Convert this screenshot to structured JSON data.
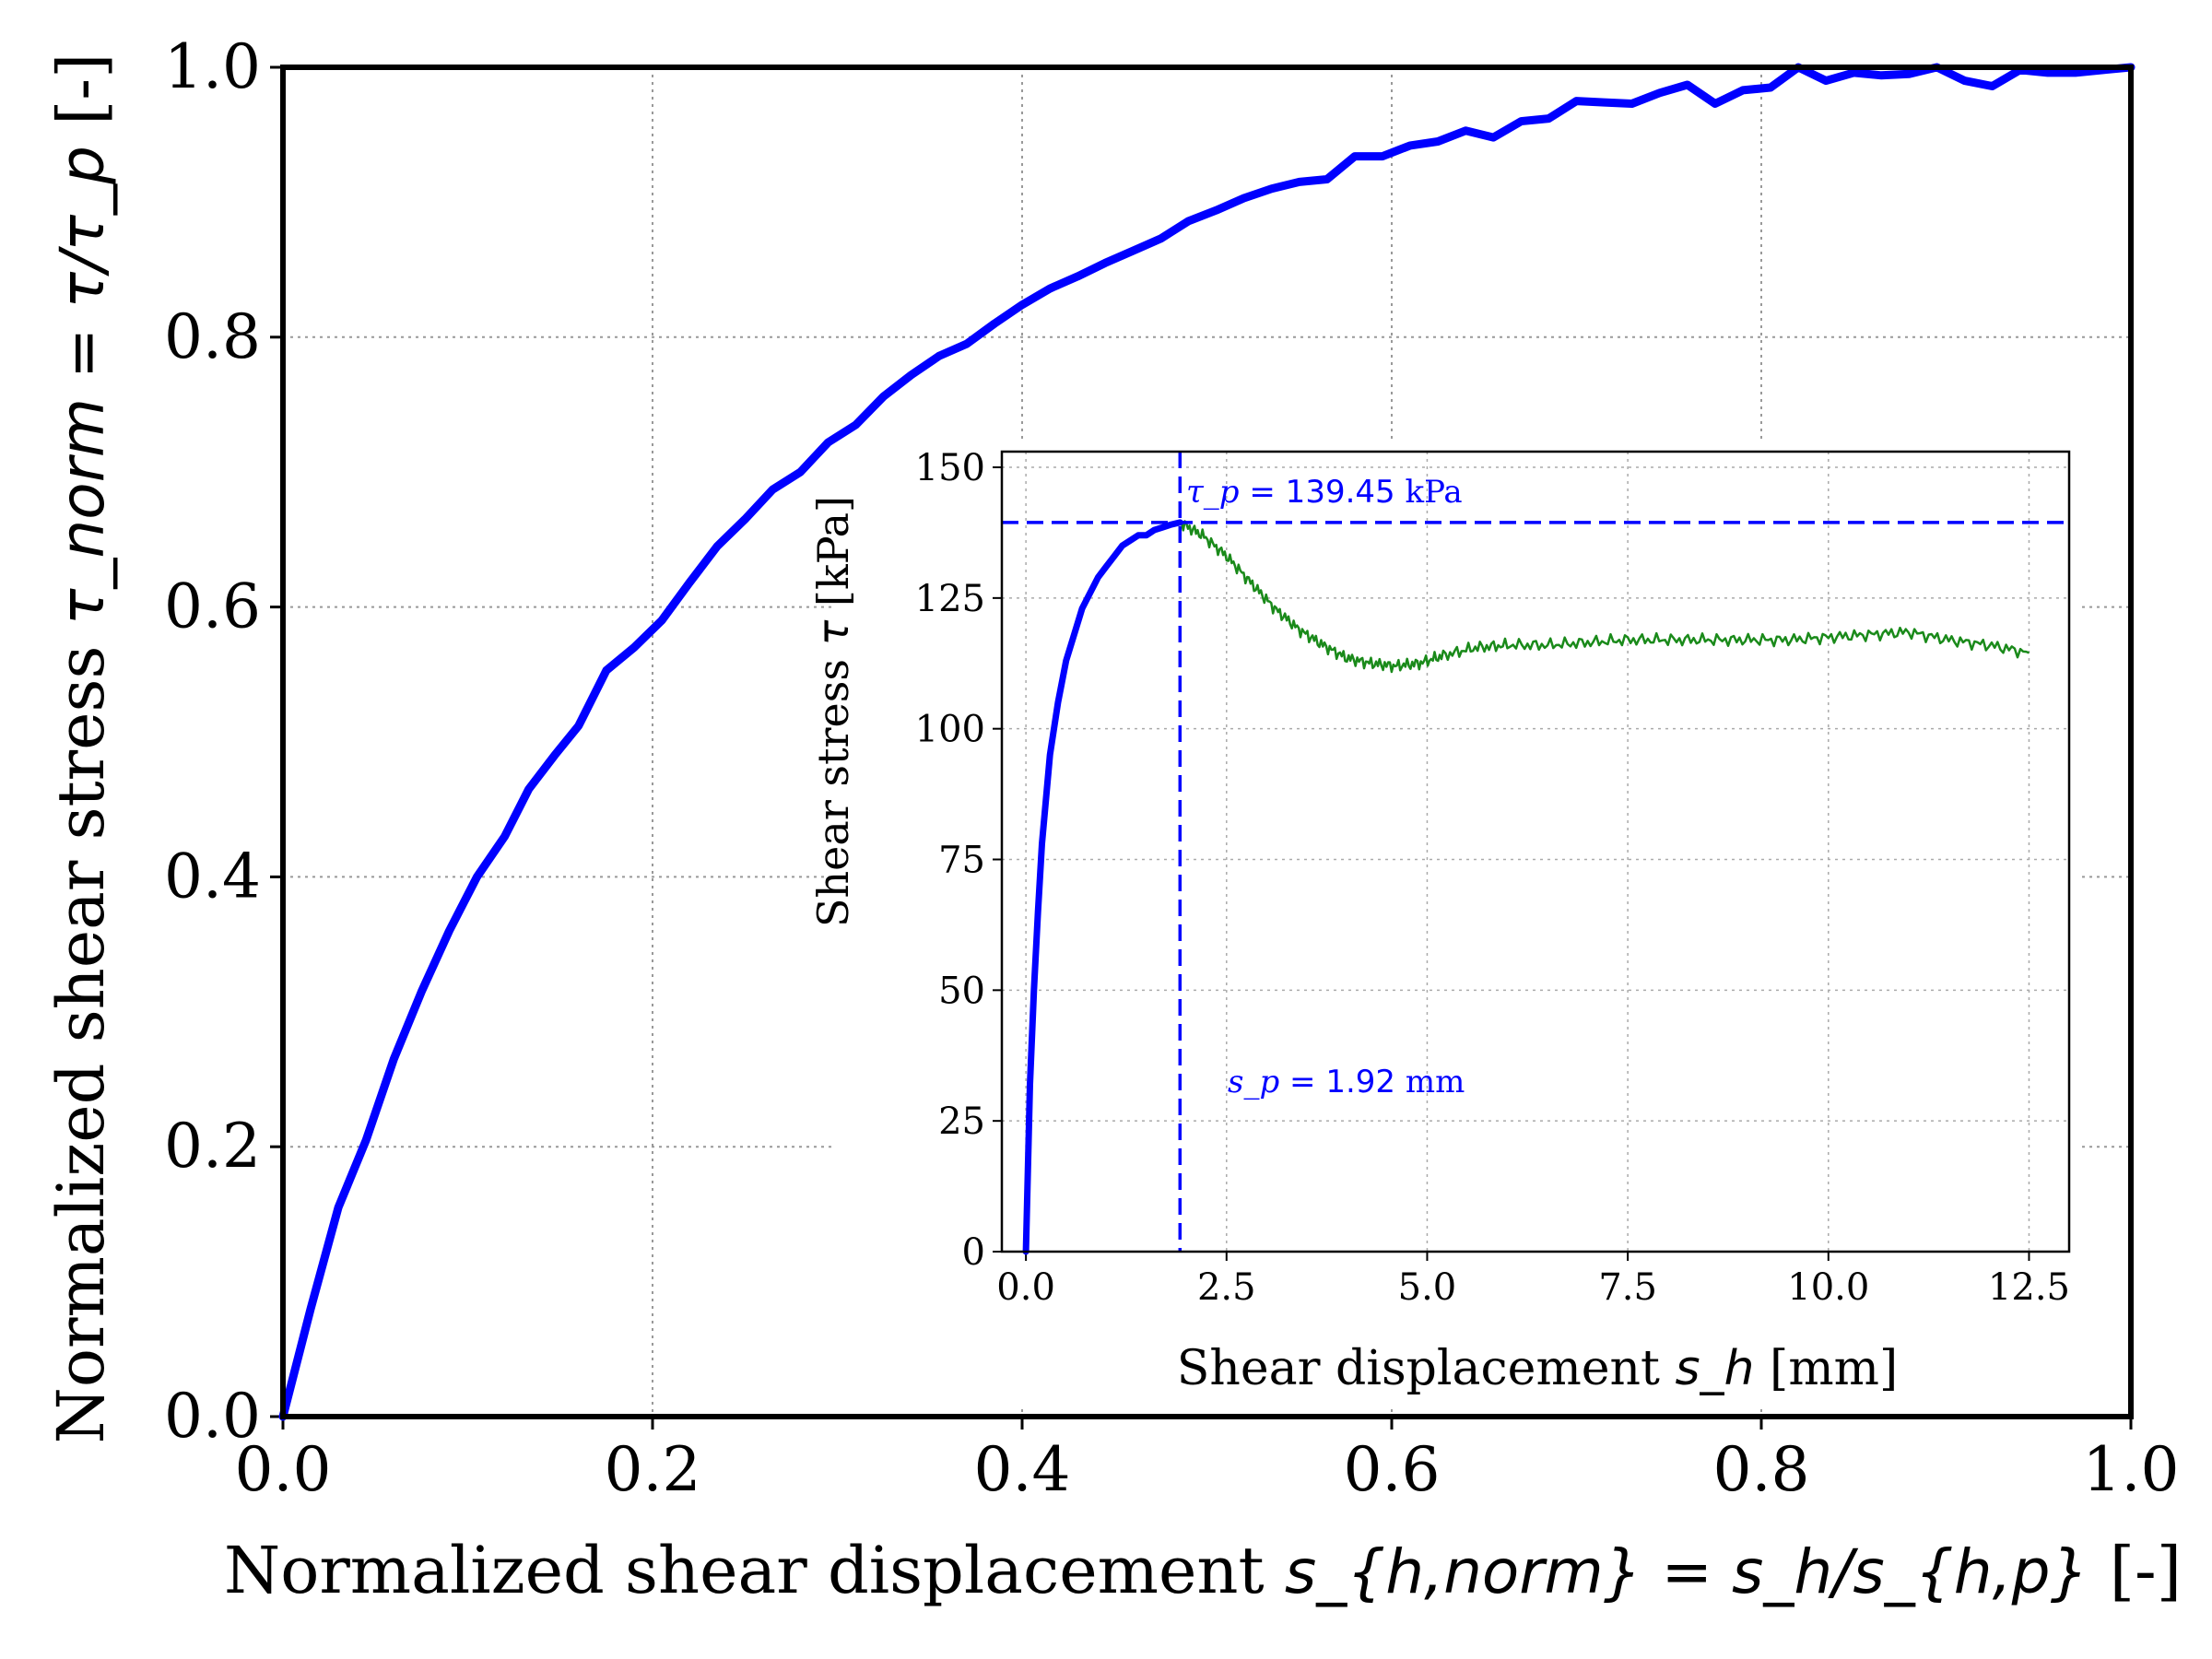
{
  "chart_data": [
    {
      "type": "line",
      "title": "",
      "xlabel": {
        "prefix": "Normalized shear displacement ",
        "math": "s_{h,norm} = s_h/s_{h,p}",
        "suffix": " [-]"
      },
      "ylabel": {
        "prefix": "Normalized shear stress ",
        "math": "τ_norm = τ/τ_p",
        "suffix": " [-]"
      },
      "xlim": [
        0,
        1
      ],
      "ylim": [
        0,
        1
      ],
      "xticks": [
        0.0,
        0.2,
        0.4,
        0.6,
        0.8,
        1.0
      ],
      "yticks": [
        0.0,
        0.2,
        0.4,
        0.6,
        0.8,
        1.0
      ],
      "xtick_labels": [
        "0.0",
        "0.2",
        "0.4",
        "0.6",
        "0.8",
        "1.0"
      ],
      "ytick_labels": [
        "0.0",
        "0.2",
        "0.4",
        "0.6",
        "0.8",
        "1.0"
      ],
      "grid": true,
      "colors": {
        "curve": "#0000ff"
      },
      "series": [
        {
          "x": [
            0.0,
            0.015,
            0.03,
            0.045,
            0.06,
            0.075,
            0.09,
            0.105,
            0.12,
            0.133,
            0.147,
            0.16,
            0.175,
            0.19,
            0.205,
            0.22,
            0.235,
            0.25,
            0.265,
            0.28,
            0.295,
            0.31,
            0.325,
            0.34,
            0.355,
            0.37,
            0.385,
            0.4,
            0.415,
            0.43,
            0.445,
            0.46,
            0.475,
            0.49,
            0.505,
            0.52,
            0.535,
            0.55,
            0.565,
            0.58,
            0.595,
            0.61,
            0.625,
            0.64,
            0.655,
            0.67,
            0.685,
            0.7,
            0.715,
            0.73,
            0.745,
            0.76,
            0.775,
            0.79,
            0.805,
            0.82,
            0.835,
            0.85,
            0.865,
            0.88,
            0.895,
            0.91,
            0.925,
            0.94,
            0.955,
            0.97,
            0.985,
            1.0
          ],
          "y": [
            0.0,
            0.08,
            0.155,
            0.205,
            0.265,
            0.315,
            0.36,
            0.4,
            0.43,
            0.465,
            0.49,
            0.512,
            0.553,
            0.57,
            0.59,
            0.618,
            0.645,
            0.665,
            0.687,
            0.7,
            0.722,
            0.735,
            0.756,
            0.772,
            0.786,
            0.795,
            0.81,
            0.824,
            0.836,
            0.845,
            0.855,
            0.864,
            0.873,
            0.886,
            0.894,
            0.903,
            0.91,
            0.915,
            0.917,
            0.934,
            0.934,
            0.942,
            0.945,
            0.953,
            0.948,
            0.96,
            0.962,
            0.975,
            0.974,
            0.973,
            0.981,
            0.987,
            0.973,
            0.983,
            0.985,
            1.0,
            0.99,
            0.996,
            0.994,
            0.995,
            1.0,
            0.99,
            0.986,
            0.998,
            0.996,
            0.996,
            0.998,
            1.0
          ]
        }
      ]
    },
    {
      "type": "line",
      "title": "",
      "xlabel": {
        "prefix": "Shear displacement ",
        "math": "s_h",
        "suffix": " [mm]"
      },
      "ylabel": {
        "prefix": "Shear stress ",
        "math": "τ",
        "suffix": " [kPa]"
      },
      "xlim": [
        -0.3,
        13.0
      ],
      "ylim": [
        0,
        153
      ],
      "xticks": [
        0.0,
        2.5,
        5.0,
        7.5,
        10.0,
        12.5
      ],
      "yticks": [
        0,
        25,
        50,
        75,
        100,
        125,
        150
      ],
      "xtick_labels": [
        "0.0",
        "2.5",
        "5.0",
        "7.5",
        "10.0",
        "12.5"
      ],
      "ytick_labels": [
        "0",
        "25",
        "50",
        "75",
        "100",
        "125",
        "150"
      ],
      "grid": true,
      "colors": {
        "pre_peak": "#0000ff",
        "post_peak": "#1a8a1a",
        "reference_lines": "#0000ff"
      },
      "peak": {
        "s_p": 1.92,
        "tau_p": 139.45
      },
      "annotations": {
        "tau_p": {
          "math": "τ_p",
          "eq": " = 139.45",
          "unit": " kPa"
        },
        "s_p": {
          "math": "s_p",
          "eq": " = 1.92",
          "unit": " mm"
        }
      },
      "series": [
        {
          "name": "",
          "x": [
            0.0,
            0.05,
            0.1,
            0.15,
            0.2,
            0.3,
            0.4,
            0.5,
            0.6,
            0.7,
            0.8,
            0.9,
            1.0,
            1.1,
            1.2,
            1.3,
            1.4,
            1.5,
            1.6,
            1.7,
            1.8,
            1.92
          ],
          "y": [
            0,
            32,
            50,
            65,
            78,
            95,
            105,
            113,
            118,
            123,
            126,
            129,
            131,
            133,
            135,
            136,
            137,
            137,
            138,
            138.5,
            139,
            139.45
          ]
        },
        {
          "name": "",
          "x": [
            1.92,
            2.2,
            2.5,
            2.8,
            3.1,
            3.4,
            3.7,
            4.0,
            4.3,
            4.6,
            4.9,
            5.2,
            5.6,
            6.0,
            6.5,
            7.0,
            7.5,
            8.0,
            8.5,
            9.0,
            9.5,
            10.0,
            10.5,
            11.0,
            11.5,
            12.0,
            12.5
          ],
          "y": [
            139.45,
            137,
            133,
            128,
            123,
            119,
            116,
            113.5,
            112.5,
            112,
            112.5,
            114,
            115.5,
            116,
            116,
            116.5,
            117,
            117,
            117,
            117,
            117,
            117.5,
            118,
            118.5,
            117,
            116,
            114.5
          ]
        }
      ]
    }
  ]
}
